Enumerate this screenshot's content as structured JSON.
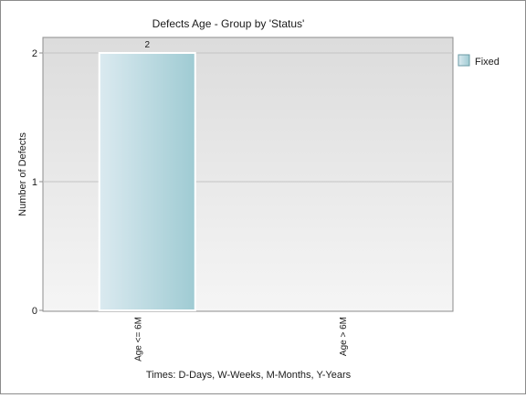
{
  "chart_data": {
    "type": "bar",
    "title": "Defects Age - Group by 'Status'",
    "ylabel": "Number of Defects",
    "xlabel": "Times: D-Days, W-Weeks, M-Months, Y-Years",
    "categories": [
      "Age <= 6M",
      "Age > 6M"
    ],
    "series": [
      {
        "name": "Fixed",
        "values": [
          2,
          0
        ]
      }
    ],
    "data_labels": [
      "2",
      ""
    ],
    "ylim": [
      0,
      2
    ],
    "yticks": [
      "0",
      "1",
      "2"
    ],
    "grid": true,
    "legend": "right",
    "colors": {
      "bar_light": "#dbeaf0",
      "bar_dark": "#9fcbd3",
      "bar_border": "#ffffff",
      "plot_top": "#dcdcdc",
      "plot_bottom": "#f5f5f5",
      "grid": "#c4c4c4",
      "axis": "#8c8c8c"
    }
  }
}
